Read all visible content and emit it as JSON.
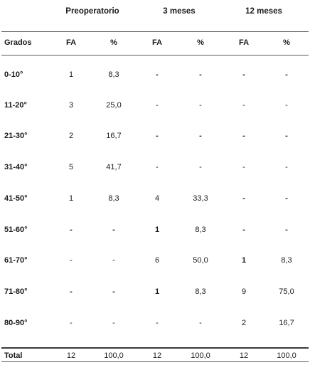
{
  "table": {
    "group_headers": [
      "Preoperatorio",
      "3 meses",
      "12 meses"
    ],
    "sub_headers": [
      "Grados",
      "FA",
      "%",
      "FA",
      "%",
      "FA",
      "%"
    ],
    "rows": [
      {
        "label": "0-10°",
        "cells": [
          "1",
          "8,3",
          "-",
          "-",
          "-",
          "-"
        ]
      },
      {
        "label": "11-20°",
        "cells": [
          "3",
          "25,0",
          "-",
          "-",
          "-",
          "-"
        ]
      },
      {
        "label": "21-30°",
        "cells": [
          "2",
          "16,7",
          "-",
          "-",
          "-",
          "-"
        ]
      },
      {
        "label": "31-40°",
        "cells": [
          "5",
          "41,7",
          "-",
          "-",
          "-",
          "-"
        ]
      },
      {
        "label": "41-50°",
        "cells": [
          "1",
          "8,3",
          "4",
          "33,3",
          "-",
          "-"
        ]
      },
      {
        "label": "51-60°",
        "cells": [
          "-",
          "-",
          "1",
          "8,3",
          "-",
          "-"
        ]
      },
      {
        "label": "61-70°",
        "cells": [
          "-",
          "-",
          "6",
          "50,0",
          "1",
          "8,3"
        ]
      },
      {
        "label": "71-80°",
        "cells": [
          "-",
          "-",
          "1",
          "8,3",
          "9",
          "75,0"
        ]
      },
      {
        "label": "80-90°",
        "cells": [
          "-",
          "-",
          "-",
          "-",
          "2",
          "16,7"
        ]
      }
    ],
    "total": {
      "label": "Total",
      "cells": [
        "12",
        "100,0",
        "12",
        "100,0",
        "12",
        "100,0"
      ]
    }
  }
}
